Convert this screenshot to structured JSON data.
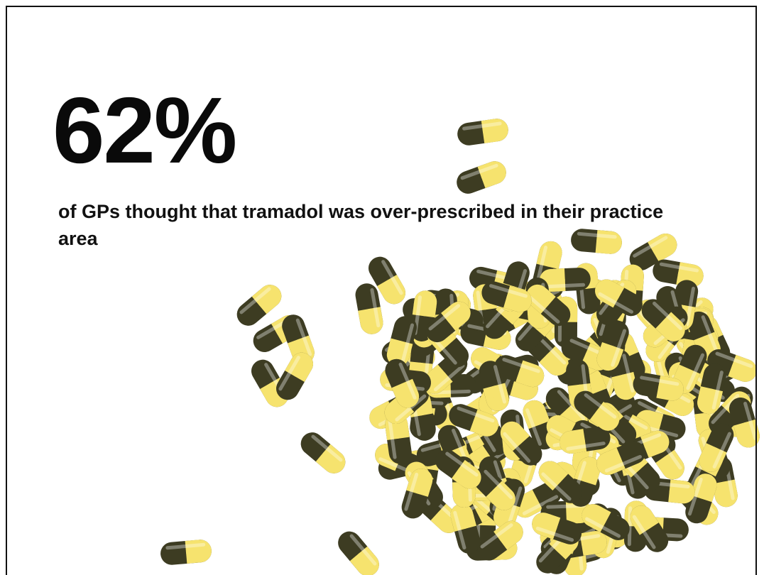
{
  "slide": {
    "stat": "62%",
    "caption": "of GPs thought that tramadol was over-prescribed in their practice area"
  }
}
